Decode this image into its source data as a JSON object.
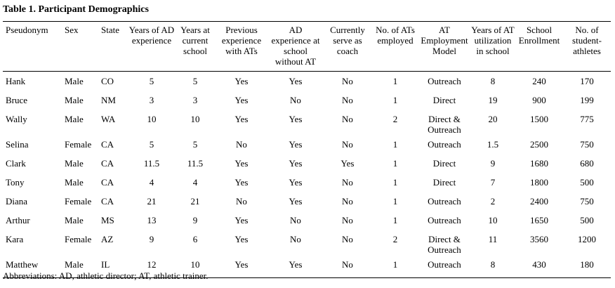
{
  "title": "Table 1. Participant Demographics",
  "columns": [
    "Pseudonym",
    "Sex",
    "State",
    "Years of AD experience",
    "Years at current school",
    "Previous experience with ATs",
    "AD experience at school without AT",
    "Currently serve as coach",
    "No. of ATs employed",
    "AT Employment Model",
    "Years of AT utilization in school",
    "School Enrollment",
    "No. of student-athletes"
  ],
  "rows": [
    [
      "Hank",
      "Male",
      "CO",
      "5",
      "5",
      "Yes",
      "Yes",
      "No",
      "1",
      "Outreach",
      "8",
      "240",
      "170"
    ],
    [
      "Bruce",
      "Male",
      "NM",
      "3",
      "3",
      "Yes",
      "No",
      "No",
      "1",
      "Direct",
      "19",
      "900",
      "199"
    ],
    [
      "Wally",
      "Male",
      "WA",
      "10",
      "10",
      "Yes",
      "Yes",
      "No",
      "2",
      "Direct & Outreach",
      "20",
      "1500",
      "775"
    ],
    [
      "Selina",
      "Female",
      "CA",
      "5",
      "5",
      "No",
      "Yes",
      "No",
      "1",
      "Outreach",
      "1.5",
      "2500",
      "750"
    ],
    [
      "Clark",
      "Male",
      "CA",
      "11.5",
      "11.5",
      "Yes",
      "Yes",
      "Yes",
      "1",
      "Direct",
      "9",
      "1680",
      "680"
    ],
    [
      "Tony",
      "Male",
      "CA",
      "4",
      "4",
      "Yes",
      "Yes",
      "No",
      "1",
      "Direct",
      "7",
      "1800",
      "500"
    ],
    [
      "Diana",
      "Female",
      "CA",
      "21",
      "21",
      "No",
      "Yes",
      "No",
      "1",
      "Outreach",
      "2",
      "2400",
      "750"
    ],
    [
      "Arthur",
      "Male",
      "MS",
      "13",
      "9",
      "Yes",
      "No",
      "No",
      "1",
      "Outreach",
      "10",
      "1650",
      "500"
    ],
    [
      "Kara",
      "Female",
      "AZ",
      "9",
      "6",
      "Yes",
      "No",
      "No",
      "2",
      "Direct & Outreach",
      "11",
      "3560",
      "1200"
    ],
    [
      "Matthew",
      "Male",
      "IL",
      "12",
      "10",
      "Yes",
      "Yes",
      "No",
      "1",
      "Outreach",
      "8",
      "430",
      "180"
    ]
  ],
  "footnote": "Abbreviations: AD, athletic director; AT, athletic trainer."
}
